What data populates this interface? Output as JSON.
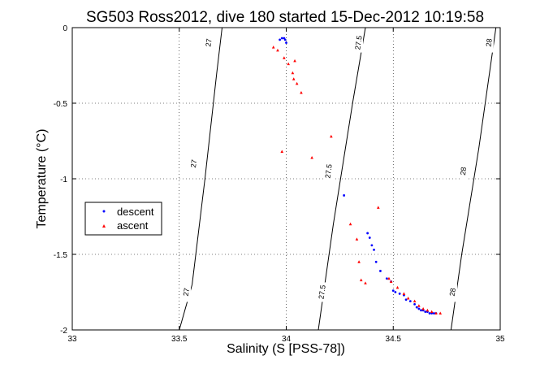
{
  "chart_data": {
    "type": "scatter",
    "title": "SG503 Ross2012, dive 180 started 15-Dec-2012 10:19:58",
    "xlabel": "Salinity (S [PSS-78])",
    "ylabel": "Temperature (°C)",
    "xlim": [
      33,
      35
    ],
    "ylim": [
      -2,
      0
    ],
    "grid": true,
    "legend_placement": "middle-left",
    "x_ticks": [
      33,
      33.5,
      34,
      34.5,
      35
    ],
    "x_tick_labels": [
      "33",
      "33.5",
      "34",
      "34.5",
      "35"
    ],
    "y_ticks": [
      0,
      -0.5,
      -1,
      -1.5,
      -2
    ],
    "y_tick_labels": [
      "0",
      "-0.5",
      "-1",
      "-1.5",
      "-2"
    ],
    "isopycnals": [
      {
        "label": "27",
        "points": [
          [
            33.5,
            -2.0
          ],
          [
            33.56,
            -1.7
          ],
          [
            33.62,
            -1.0
          ],
          [
            33.675,
            -0.3
          ],
          [
            33.7,
            0.0
          ]
        ],
        "label_positions": [
          [
            33.535,
            -1.75
          ],
          [
            33.57,
            -0.9
          ],
          [
            33.64,
            -0.1
          ]
        ]
      },
      {
        "label": "27.5",
        "points": [
          [
            34.15,
            -2.0
          ],
          [
            34.22,
            -1.3
          ],
          [
            34.31,
            -0.5
          ],
          [
            34.37,
            0.0
          ]
        ],
        "label_positions": [
          [
            34.17,
            -1.75
          ],
          [
            34.2,
            -0.95
          ],
          [
            34.34,
            -0.1
          ]
        ]
      },
      {
        "label": "28",
        "points": [
          [
            34.77,
            -2.0
          ],
          [
            34.82,
            -1.5
          ],
          [
            34.9,
            -0.8
          ],
          [
            34.95,
            -0.3
          ],
          [
            34.98,
            0.0
          ]
        ],
        "label_positions": [
          [
            34.78,
            -1.75
          ],
          [
            34.83,
            -0.95
          ],
          [
            34.95,
            -0.1
          ]
        ]
      }
    ],
    "series": [
      {
        "name": "descent",
        "color": "#0000ff",
        "marker": "dot",
        "x": [
          33.97,
          33.98,
          33.99,
          33.995,
          34.0,
          34.27,
          34.38,
          34.39,
          34.4,
          34.41,
          34.42,
          34.44,
          34.47,
          34.49,
          34.5,
          34.51,
          34.53,
          34.55,
          34.56,
          34.58,
          34.6,
          34.61,
          34.62,
          34.63,
          34.64,
          34.65,
          34.66,
          34.67,
          34.68,
          34.69,
          34.7
        ],
        "y": [
          -0.08,
          -0.07,
          -0.07,
          -0.08,
          -0.1,
          -1.11,
          -1.36,
          -1.39,
          -1.44,
          -1.47,
          -1.55,
          -1.61,
          -1.66,
          -1.68,
          -1.74,
          -1.75,
          -1.76,
          -1.77,
          -1.8,
          -1.81,
          -1.83,
          -1.85,
          -1.86,
          -1.87,
          -1.87,
          -1.88,
          -1.88,
          -1.89,
          -1.89,
          -1.89,
          -1.89
        ]
      },
      {
        "name": "ascent",
        "color": "#ff0000",
        "marker": "triangle",
        "x": [
          33.94,
          33.96,
          33.99,
          34.01,
          34.03,
          34.035,
          34.04,
          34.05,
          34.07,
          33.98,
          34.21,
          34.12,
          34.43,
          34.3,
          34.33,
          34.34,
          34.35,
          34.37,
          34.48,
          34.49,
          34.52,
          34.55,
          34.57,
          34.6,
          34.62,
          34.64,
          34.66,
          34.68,
          34.7,
          34.72
        ],
        "y": [
          -0.13,
          -0.15,
          -0.2,
          -0.24,
          -0.3,
          -0.34,
          -0.22,
          -0.37,
          -0.43,
          -0.82,
          -0.72,
          -0.86,
          -1.19,
          -1.3,
          -1.4,
          -1.55,
          -1.67,
          -1.69,
          -1.66,
          -1.68,
          -1.72,
          -1.76,
          -1.79,
          -1.81,
          -1.84,
          -1.86,
          -1.87,
          -1.88,
          -1.89,
          -1.89
        ]
      }
    ]
  }
}
